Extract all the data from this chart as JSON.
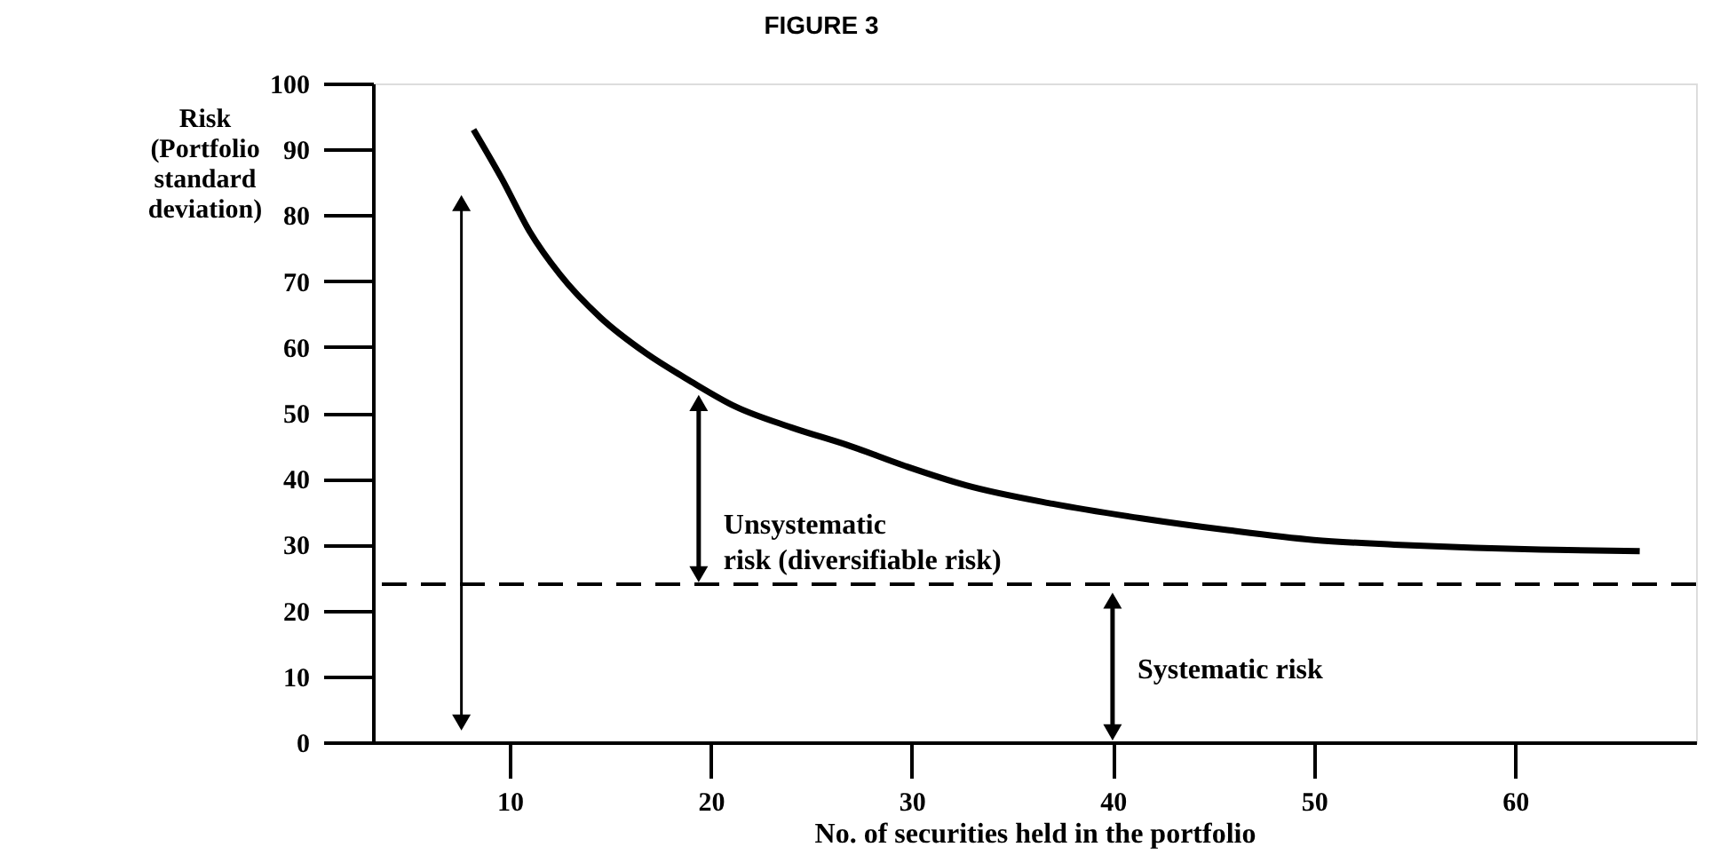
{
  "chart_data": {
    "type": "line",
    "title": "FIGURE 3",
    "xlabel": "No. of securities held in the portfolio",
    "ylabel": "Risk (Portfolio standard deviation)",
    "x": [
      8.2,
      9.6,
      11,
      12.5,
      14.5,
      16.8,
      19,
      21.2,
      24,
      26.9,
      29.8,
      32.7,
      37,
      41.4,
      45.7,
      50,
      54,
      58,
      62,
      66.2
    ],
    "series": [
      {
        "color": "#000000",
        "values": [
          93,
          85.6,
          77.5,
          71,
          64.5,
          59,
          54.8,
          51,
          47.8,
          45,
          41.8,
          39,
          36.2,
          34,
          32.2,
          30.7,
          30,
          29.5,
          29.2,
          29
        ]
      }
    ],
    "xlim": [
      3.2,
      69
    ],
    "xticks": [
      10,
      20,
      30,
      40,
      50,
      60
    ],
    "ylim": [
      0,
      100
    ],
    "yticks": [
      0,
      10,
      20,
      30,
      40,
      50,
      60,
      70,
      80,
      90,
      100
    ],
    "ref_lines": [
      {
        "axis": "y",
        "value": 24,
        "label": null,
        "color": "#000000",
        "line_style": "dashed"
      }
    ],
    "annotations": [
      {
        "text": "Unsystematic\nrisk (diversifiable risk)",
        "x": 19.4,
        "y": 54
      },
      "Systematic risk"
    ],
    "grid": false,
    "marker": "none",
    "line_style": "solid"
  }
}
